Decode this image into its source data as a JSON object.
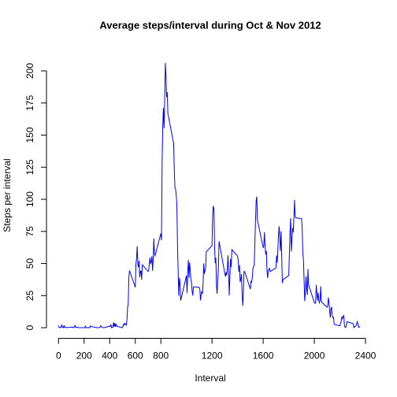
{
  "chart_data": {
    "type": "line",
    "title": "Average steps/interval during Oct & Nov 2012",
    "xlabel": "Interval",
    "ylabel": "Steps per interval",
    "color": "#0000ff",
    "xlim": [
      -94.2,
      2449.2
    ],
    "ylim": [
      -8.25,
      214.42
    ],
    "xticks": [
      0,
      200,
      400,
      600,
      800,
      1200,
      1600,
      2000,
      2400
    ],
    "yticks": [
      0,
      25,
      50,
      75,
      100,
      125,
      150,
      175,
      200
    ],
    "x": [
      0,
      5,
      10,
      15,
      20,
      25,
      30,
      35,
      40,
      45,
      50,
      55,
      100,
      105,
      110,
      115,
      120,
      125,
      130,
      135,
      140,
      145,
      150,
      155,
      200,
      205,
      210,
      215,
      220,
      225,
      230,
      235,
      240,
      245,
      250,
      255,
      300,
      305,
      310,
      315,
      320,
      325,
      330,
      335,
      340,
      345,
      350,
      355,
      400,
      405,
      410,
      415,
      420,
      425,
      430,
      435,
      440,
      445,
      450,
      455,
      500,
      505,
      510,
      515,
      520,
      525,
      530,
      535,
      540,
      545,
      550,
      555,
      600,
      605,
      610,
      615,
      620,
      625,
      630,
      635,
      640,
      645,
      650,
      655,
      700,
      705,
      710,
      715,
      720,
      725,
      730,
      735,
      740,
      745,
      750,
      755,
      800,
      805,
      810,
      815,
      820,
      825,
      830,
      835,
      840,
      845,
      850,
      855,
      900,
      905,
      910,
      915,
      920,
      925,
      930,
      935,
      940,
      945,
      950,
      955,
      1000,
      1005,
      1010,
      1015,
      1020,
      1025,
      1030,
      1035,
      1040,
      1045,
      1050,
      1055,
      1100,
      1105,
      1110,
      1115,
      1120,
      1125,
      1130,
      1135,
      1140,
      1145,
      1150,
      1155,
      1200,
      1205,
      1210,
      1215,
      1220,
      1225,
      1230,
      1235,
      1240,
      1245,
      1250,
      1255,
      1300,
      1305,
      1310,
      1315,
      1320,
      1325,
      1330,
      1335,
      1340,
      1345,
      1350,
      1355,
      1400,
      1405,
      1410,
      1415,
      1420,
      1425,
      1430,
      1435,
      1440,
      1445,
      1450,
      1455,
      1500,
      1505,
      1510,
      1515,
      1520,
      1525,
      1530,
      1535,
      1540,
      1545,
      1550,
      1555,
      1600,
      1605,
      1610,
      1615,
      1620,
      1625,
      1630,
      1635,
      1640,
      1645,
      1650,
      1655,
      1700,
      1705,
      1710,
      1715,
      1720,
      1725,
      1730,
      1735,
      1740,
      1745,
      1750,
      1755,
      1800,
      1805,
      1810,
      1815,
      1820,
      1825,
      1830,
      1835,
      1840,
      1845,
      1850,
      1855,
      1900,
      1905,
      1910,
      1915,
      1920,
      1925,
      1930,
      1935,
      1940,
      1945,
      1950,
      1955,
      2000,
      2005,
      2010,
      2015,
      2020,
      2025,
      2030,
      2035,
      2040,
      2045,
      2050,
      2055,
      2100,
      2105,
      2110,
      2115,
      2120,
      2125,
      2130,
      2135,
      2140,
      2145,
      2150,
      2155,
      2200,
      2205,
      2210,
      2215,
      2220,
      2225,
      2230,
      2235,
      2240,
      2245,
      2250,
      2255,
      2300,
      2305,
      2310,
      2315,
      2320,
      2325,
      2330,
      2335,
      2340,
      2345,
      2350,
      2355
    ],
    "values": [
      1.7,
      0.3,
      0.1,
      0.2,
      0.1,
      2.1,
      0.5,
      0.9,
      0,
      1.5,
      0.3,
      0.1,
      0.3,
      0.7,
      0.2,
      0.3,
      0,
      1.1,
      1.8,
      0.2,
      0.2,
      0.4,
      0.3,
      0,
      0,
      0,
      1.1,
      0,
      0,
      0.1,
      0,
      0.2,
      0,
      0,
      1.5,
      0.9,
      0,
      0,
      0,
      0,
      0.2,
      0.6,
      1.6,
      0.6,
      0.5,
      0.1,
      0,
      0,
      1.2,
      0.9,
      2.6,
      0,
      0.3,
      0.4,
      4.1,
      0.7,
      3.5,
      0.8,
      3.1,
      1.1,
      0,
      1.6,
      3,
      2.2,
      3.3,
      3,
      2.1,
      6.1,
      16,
      18.3,
      39.5,
      44.5,
      31.5,
      49.3,
      53.8,
      63.5,
      50,
      47.1,
      52.2,
      39.3,
      44,
      44.2,
      37.4,
      49,
      43.8,
      44.4,
      50.5,
      54.5,
      49.9,
      51,
      55.7,
      44.3,
      52.3,
      69.5,
      57.8,
      56.2,
      73.4,
      68.2,
      129.4,
      157.5,
      171.2,
      155.4,
      177.3,
      206.2,
      195.9,
      179.6,
      183.4,
      167,
      143.5,
      124,
      109.1,
      108.1,
      103.7,
      96,
      66.2,
      45.2,
      24.8,
      38.8,
      35,
      21.1,
      40.6,
      27,
      42.4,
      52.7,
      38.9,
      50.8,
      44.3,
      37.4,
      34.7,
      28.3,
      25.1,
      31.9,
      31.4,
      29.7,
      21.3,
      25.5,
      28.4,
      26.5,
      33.4,
      50,
      42,
      44.6,
      46,
      59.2,
      63.9,
      87.7,
      94.8,
      92.8,
      63.4,
      50.2,
      54.5,
      32.4,
      26.5,
      37.7,
      45.1,
      67.3,
      42.3,
      39.9,
      43.3,
      41,
      46.2,
      56.4,
      42.8,
      25.1,
      40,
      53.5,
      47.3,
      60.8,
      55.8,
      52,
      43.6,
      48.7,
      35.5,
      37.5,
      41.8,
      27.5,
      17.1,
      26.1,
      43.6,
      43.8,
      30,
      36.1,
      35.5,
      38.8,
      46,
      47.8,
      48.1,
      65.3,
      82.9,
      98.7,
      102.1,
      84,
      62.1,
      64.1,
      74.5,
      63.2,
      56.9,
      59.8,
      43.9,
      38.6,
      44.7,
      45.5,
      46.2,
      43.7,
      46.6,
      56.3,
      50.7,
      61.2,
      72.7,
      78.9,
      68.9,
      59.7,
      75.1,
      56.5,
      34.8,
      37.5,
      40.7,
      58,
      74.7,
      85.3,
      59.3,
      67.8,
      77.7,
      74.2,
      85.3,
      99.5,
      86.6,
      85.6,
      84.9,
      77.8,
      58,
      53.4,
      36.3,
      20.7,
      27.4,
      40,
      30.2,
      25.5,
      45.7,
      33.5,
      19.6,
      19,
      19.3,
      33.3,
      26.8,
      21.2,
      27.3,
      21.3,
      19.5,
      21.3,
      32.3,
      20.2,
      15.9,
      17.2,
      23.5,
      19.2,
      12.5,
      8,
      14.7,
      16.3,
      8.7,
      7.8,
      8.1,
      2.6,
      1.5,
      3.7,
      4.8,
      8.5,
      7.1,
      8.7,
      9.8,
      2.2,
      0.3,
      0.1,
      1.6,
      4.6,
      3.3,
      2.8,
      0,
      0.8,
      1,
      1.6,
      2.6,
      4.7,
      3.3,
      0.6,
      0.2,
      1.1
    ]
  }
}
